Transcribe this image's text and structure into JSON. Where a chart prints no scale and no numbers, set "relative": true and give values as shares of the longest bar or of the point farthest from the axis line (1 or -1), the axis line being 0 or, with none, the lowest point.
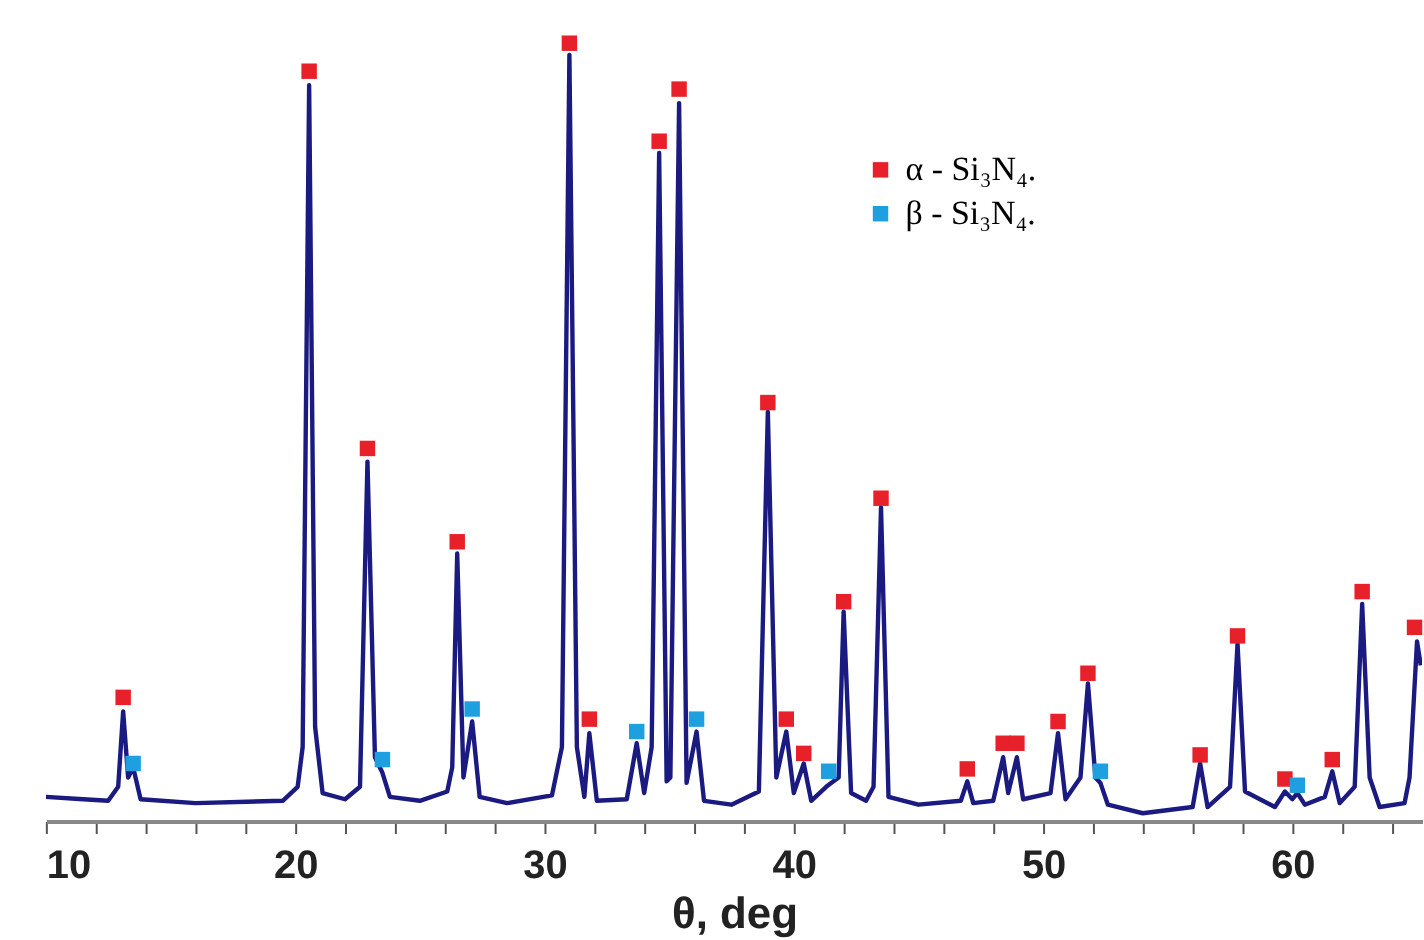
{
  "chart_data": {
    "type": "line",
    "relative": true,
    "xlabel": "θ, deg",
    "xlim": [
      10,
      65.2
    ],
    "xticks": [
      10,
      {
        "value": 12,
        "label": null
      },
      {
        "value": 14,
        "label": null
      },
      {
        "value": 16,
        "label": null
      },
      {
        "value": 18,
        "label": null
      },
      20,
      {
        "value": 22,
        "label": null
      },
      {
        "value": 24,
        "label": null
      },
      {
        "value": 26,
        "label": null
      },
      {
        "value": 28,
        "label": null
      },
      30,
      {
        "value": 32,
        "label": null
      },
      {
        "value": 34,
        "label": null
      },
      {
        "value": 36,
        "label": null
      },
      {
        "value": 38,
        "label": null
      },
      40,
      {
        "value": 42,
        "label": null
      },
      {
        "value": 44,
        "label": null
      },
      {
        "value": 46,
        "label": null
      },
      {
        "value": 48,
        "label": null
      },
      50,
      {
        "value": 52,
        "label": null
      },
      {
        "value": 54,
        "label": null
      },
      {
        "value": 56,
        "label": null
      },
      {
        "value": 58,
        "label": null
      },
      60,
      {
        "value": 62,
        "label": null
      },
      {
        "value": 64,
        "label": null
      }
    ],
    "grid": false,
    "legend": "top right",
    "series": [
      {
        "type": "line",
        "color": "#1a1a80",
        "line_style": "solid",
        "x": [
          10.0,
          11.5,
          12.5,
          12.9,
          13.1,
          13.3,
          13.5,
          13.8,
          16.0,
          19.5,
          20.1,
          20.3,
          20.56,
          20.8,
          21.1,
          22.0,
          22.6,
          22.9,
          23.2,
          23.5,
          23.8,
          25.0,
          26.1,
          26.3,
          26.5,
          26.75,
          27.1,
          27.4,
          28.5,
          30.3,
          30.7,
          31.0,
          31.3,
          31.6,
          31.8,
          32.1,
          33.3,
          33.7,
          34.0,
          34.3,
          34.6,
          34.9,
          35.05,
          35.4,
          35.7,
          36.1,
          36.4,
          37.5,
          38.6,
          38.96,
          39.3,
          39.7,
          40.0,
          40.4,
          40.7,
          41.3,
          41.5,
          41.8,
          42.0,
          42.3,
          42.9,
          43.2,
          43.5,
          43.8,
          45.0,
          46.7,
          46.96,
          47.2,
          48.0,
          48.4,
          48.6,
          48.95,
          49.2,
          50.3,
          50.6,
          50.9,
          51.5,
          51.8,
          52.1,
          52.3,
          52.6,
          54.0,
          56.0,
          56.3,
          56.6,
          57.5,
          57.8,
          58.1,
          59.3,
          59.7,
          60.0,
          60.2,
          60.5,
          61.3,
          61.6,
          61.9,
          62.5,
          62.8,
          63.1,
          63.5,
          64.5,
          64.7,
          65.0,
          65.15
        ],
        "values": [
          0.031,
          0.028,
          0.026,
          0.044,
          0.141,
          0.056,
          0.069,
          0.028,
          0.023,
          0.026,
          0.044,
          0.095,
          0.946,
          0.121,
          0.036,
          0.028,
          0.044,
          0.462,
          0.082,
          0.062,
          0.031,
          0.026,
          0.038,
          0.069,
          0.344,
          0.056,
          0.128,
          0.031,
          0.023,
          0.033,
          0.095,
          0.985,
          0.095,
          0.031,
          0.113,
          0.026,
          0.028,
          0.1,
          0.036,
          0.095,
          0.859,
          0.051,
          0.056,
          0.923,
          0.049,
          0.115,
          0.026,
          0.021,
          0.038,
          0.526,
          0.056,
          0.115,
          0.036,
          0.074,
          0.026,
          0.044,
          0.049,
          0.056,
          0.269,
          0.036,
          0.026,
          0.044,
          0.403,
          0.031,
          0.021,
          0.026,
          0.051,
          0.023,
          0.026,
          0.082,
          0.036,
          0.082,
          0.028,
          0.036,
          0.113,
          0.028,
          0.056,
          0.177,
          0.056,
          0.049,
          0.021,
          0.01,
          0.018,
          0.074,
          0.018,
          0.044,
          0.228,
          0.038,
          0.018,
          0.038,
          0.028,
          0.036,
          0.021,
          0.031,
          0.064,
          0.023,
          0.044,
          0.279,
          0.056,
          0.018,
          0.023,
          0.056,
          0.231,
          0.2
        ]
      },
      {
        "type": "scatter",
        "name": "α - Si₃N₄.",
        "color": "#e8202a",
        "marker": "square",
        "x": [
          13.1,
          20.56,
          22.9,
          26.5,
          31.0,
          31.8,
          34.6,
          35.4,
          38.96,
          39.7,
          40.4,
          42.0,
          43.5,
          46.96,
          48.4,
          48.95,
          50.6,
          51.8,
          56.3,
          57.8,
          59.7,
          61.6,
          62.8,
          64.9
        ],
        "values": [
          0.159,
          0.964,
          0.479,
          0.359,
          1.0,
          0.131,
          0.874,
          0.941,
          0.538,
          0.131,
          0.087,
          0.282,
          0.415,
          0.067,
          0.1,
          0.1,
          0.128,
          0.19,
          0.085,
          0.238,
          0.054,
          0.079,
          0.295,
          0.249
        ]
      },
      {
        "type": "scatter",
        "name": "β - Si₃N₄.",
        "color": "#1ea0e0",
        "marker": "square",
        "x": [
          13.5,
          23.5,
          27.1,
          33.7,
          36.1,
          41.4,
          52.3,
          60.2
        ],
        "values": [
          0.074,
          0.079,
          0.144,
          0.115,
          0.131,
          0.064,
          0.064,
          0.046
        ]
      }
    ]
  }
}
